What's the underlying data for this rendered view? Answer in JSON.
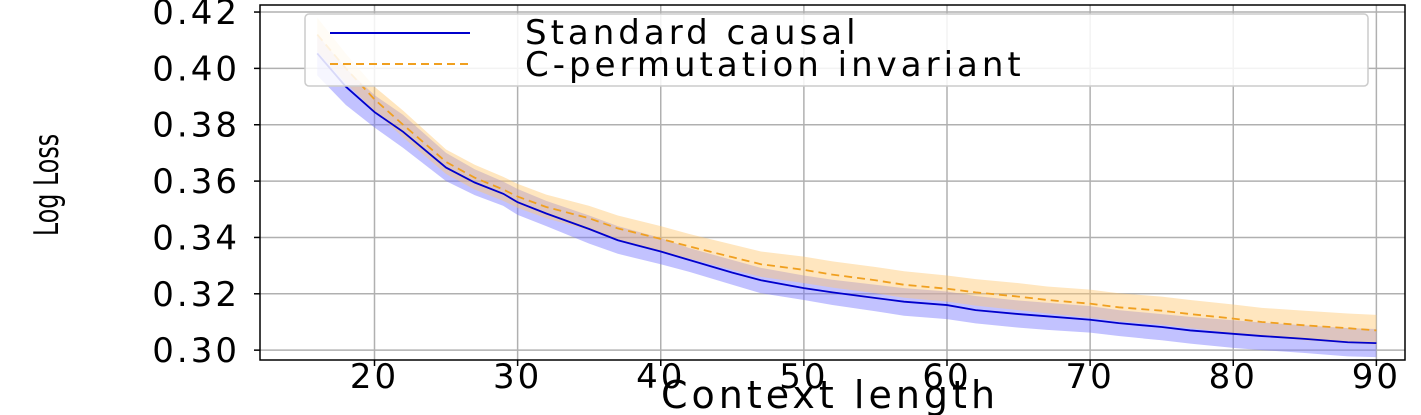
{
  "chart_data": {
    "type": "line",
    "title": "",
    "xlabel": "Context length",
    "ylabel": "Log Loss",
    "xlim": [
      12,
      92
    ],
    "ylim": [
      0.2965,
      0.4225
    ],
    "x_ticks": [
      20,
      30,
      40,
      50,
      60,
      70,
      80,
      90
    ],
    "y_ticks": [
      0.3,
      0.32,
      0.34,
      0.36,
      0.38,
      0.4,
      0.42
    ],
    "x_tick_labels": [
      "20",
      "30",
      "40",
      "50",
      "60",
      "70",
      "80",
      "90"
    ],
    "y_tick_labels": [
      "0.30",
      "0.32",
      "0.34",
      "0.36",
      "0.38",
      "0.40",
      "0.42"
    ],
    "grid": true,
    "legend_position": "top-right",
    "x": [
      16,
      18,
      20,
      22,
      25,
      27,
      29,
      30,
      32,
      35,
      37,
      40,
      42,
      45,
      47,
      50,
      52,
      55,
      57,
      60,
      62,
      65,
      67,
      70,
      72,
      75,
      77,
      80,
      82,
      85,
      88,
      90
    ],
    "series": [
      {
        "name": "Standard causal",
        "color": "#0000cc",
        "band_color": "#7777ff",
        "style": "solid",
        "values": [
          0.4053,
          0.3935,
          0.3845,
          0.3775,
          0.3648,
          0.3595,
          0.3555,
          0.3525,
          0.3485,
          0.343,
          0.339,
          0.335,
          0.332,
          0.3275,
          0.3248,
          0.322,
          0.3205,
          0.3185,
          0.3172,
          0.316,
          0.3142,
          0.3128,
          0.312,
          0.3108,
          0.3096,
          0.3082,
          0.307,
          0.3058,
          0.305,
          0.304,
          0.3028,
          0.3025
        ],
        "lower": [
          0.3975,
          0.387,
          0.379,
          0.3718,
          0.36,
          0.355,
          0.3512,
          0.348,
          0.344,
          0.3378,
          0.3342,
          0.3305,
          0.3278,
          0.3232,
          0.3202,
          0.3178,
          0.316,
          0.3138,
          0.3122,
          0.311,
          0.3095,
          0.308,
          0.3072,
          0.3062,
          0.305,
          0.3035,
          0.3023,
          0.3008,
          0.3,
          0.299,
          0.2978,
          0.2975
        ],
        "upper": [
          0.412,
          0.4,
          0.3905,
          0.3835,
          0.37,
          0.3642,
          0.3598,
          0.3572,
          0.353,
          0.3478,
          0.344,
          0.3398,
          0.3362,
          0.332,
          0.3292,
          0.3265,
          0.325,
          0.3232,
          0.322,
          0.3208,
          0.3192,
          0.3176,
          0.3168,
          0.3156,
          0.3142,
          0.3128,
          0.3118,
          0.3106,
          0.3098,
          0.3088,
          0.3078,
          0.3075
        ]
      },
      {
        "name": "C-permutation invariant",
        "color": "#f0a020",
        "band_color": "#ffc870",
        "style": "dashed",
        "values": [
          0.412,
          0.4,
          0.389,
          0.38,
          0.3668,
          0.3612,
          0.357,
          0.3545,
          0.3508,
          0.3468,
          0.3432,
          0.3395,
          0.3368,
          0.333,
          0.3305,
          0.3285,
          0.3268,
          0.3248,
          0.3232,
          0.3218,
          0.3205,
          0.319,
          0.3178,
          0.3165,
          0.3152,
          0.314,
          0.3128,
          0.3112,
          0.31,
          0.3088,
          0.3078,
          0.307
        ],
        "lower": [
          0.406,
          0.3948,
          0.3848,
          0.3755,
          0.3625,
          0.357,
          0.353,
          0.3505,
          0.3468,
          0.3425,
          0.339,
          0.3352,
          0.3325,
          0.3285,
          0.326,
          0.3238,
          0.3222,
          0.3202,
          0.3186,
          0.3172,
          0.3158,
          0.3142,
          0.313,
          0.3115,
          0.3102,
          0.309,
          0.3078,
          0.306,
          0.3048,
          0.3035,
          0.3025,
          0.302
        ],
        "upper": [
          0.418,
          0.4052,
          0.3935,
          0.385,
          0.3712,
          0.3658,
          0.3615,
          0.359,
          0.3552,
          0.3512,
          0.3478,
          0.344,
          0.3412,
          0.3375,
          0.335,
          0.3332,
          0.3315,
          0.3295,
          0.328,
          0.3265,
          0.3252,
          0.3238,
          0.3226,
          0.3215,
          0.3202,
          0.319,
          0.3178,
          0.3162,
          0.315,
          0.314,
          0.313,
          0.3125
        ]
      }
    ]
  }
}
